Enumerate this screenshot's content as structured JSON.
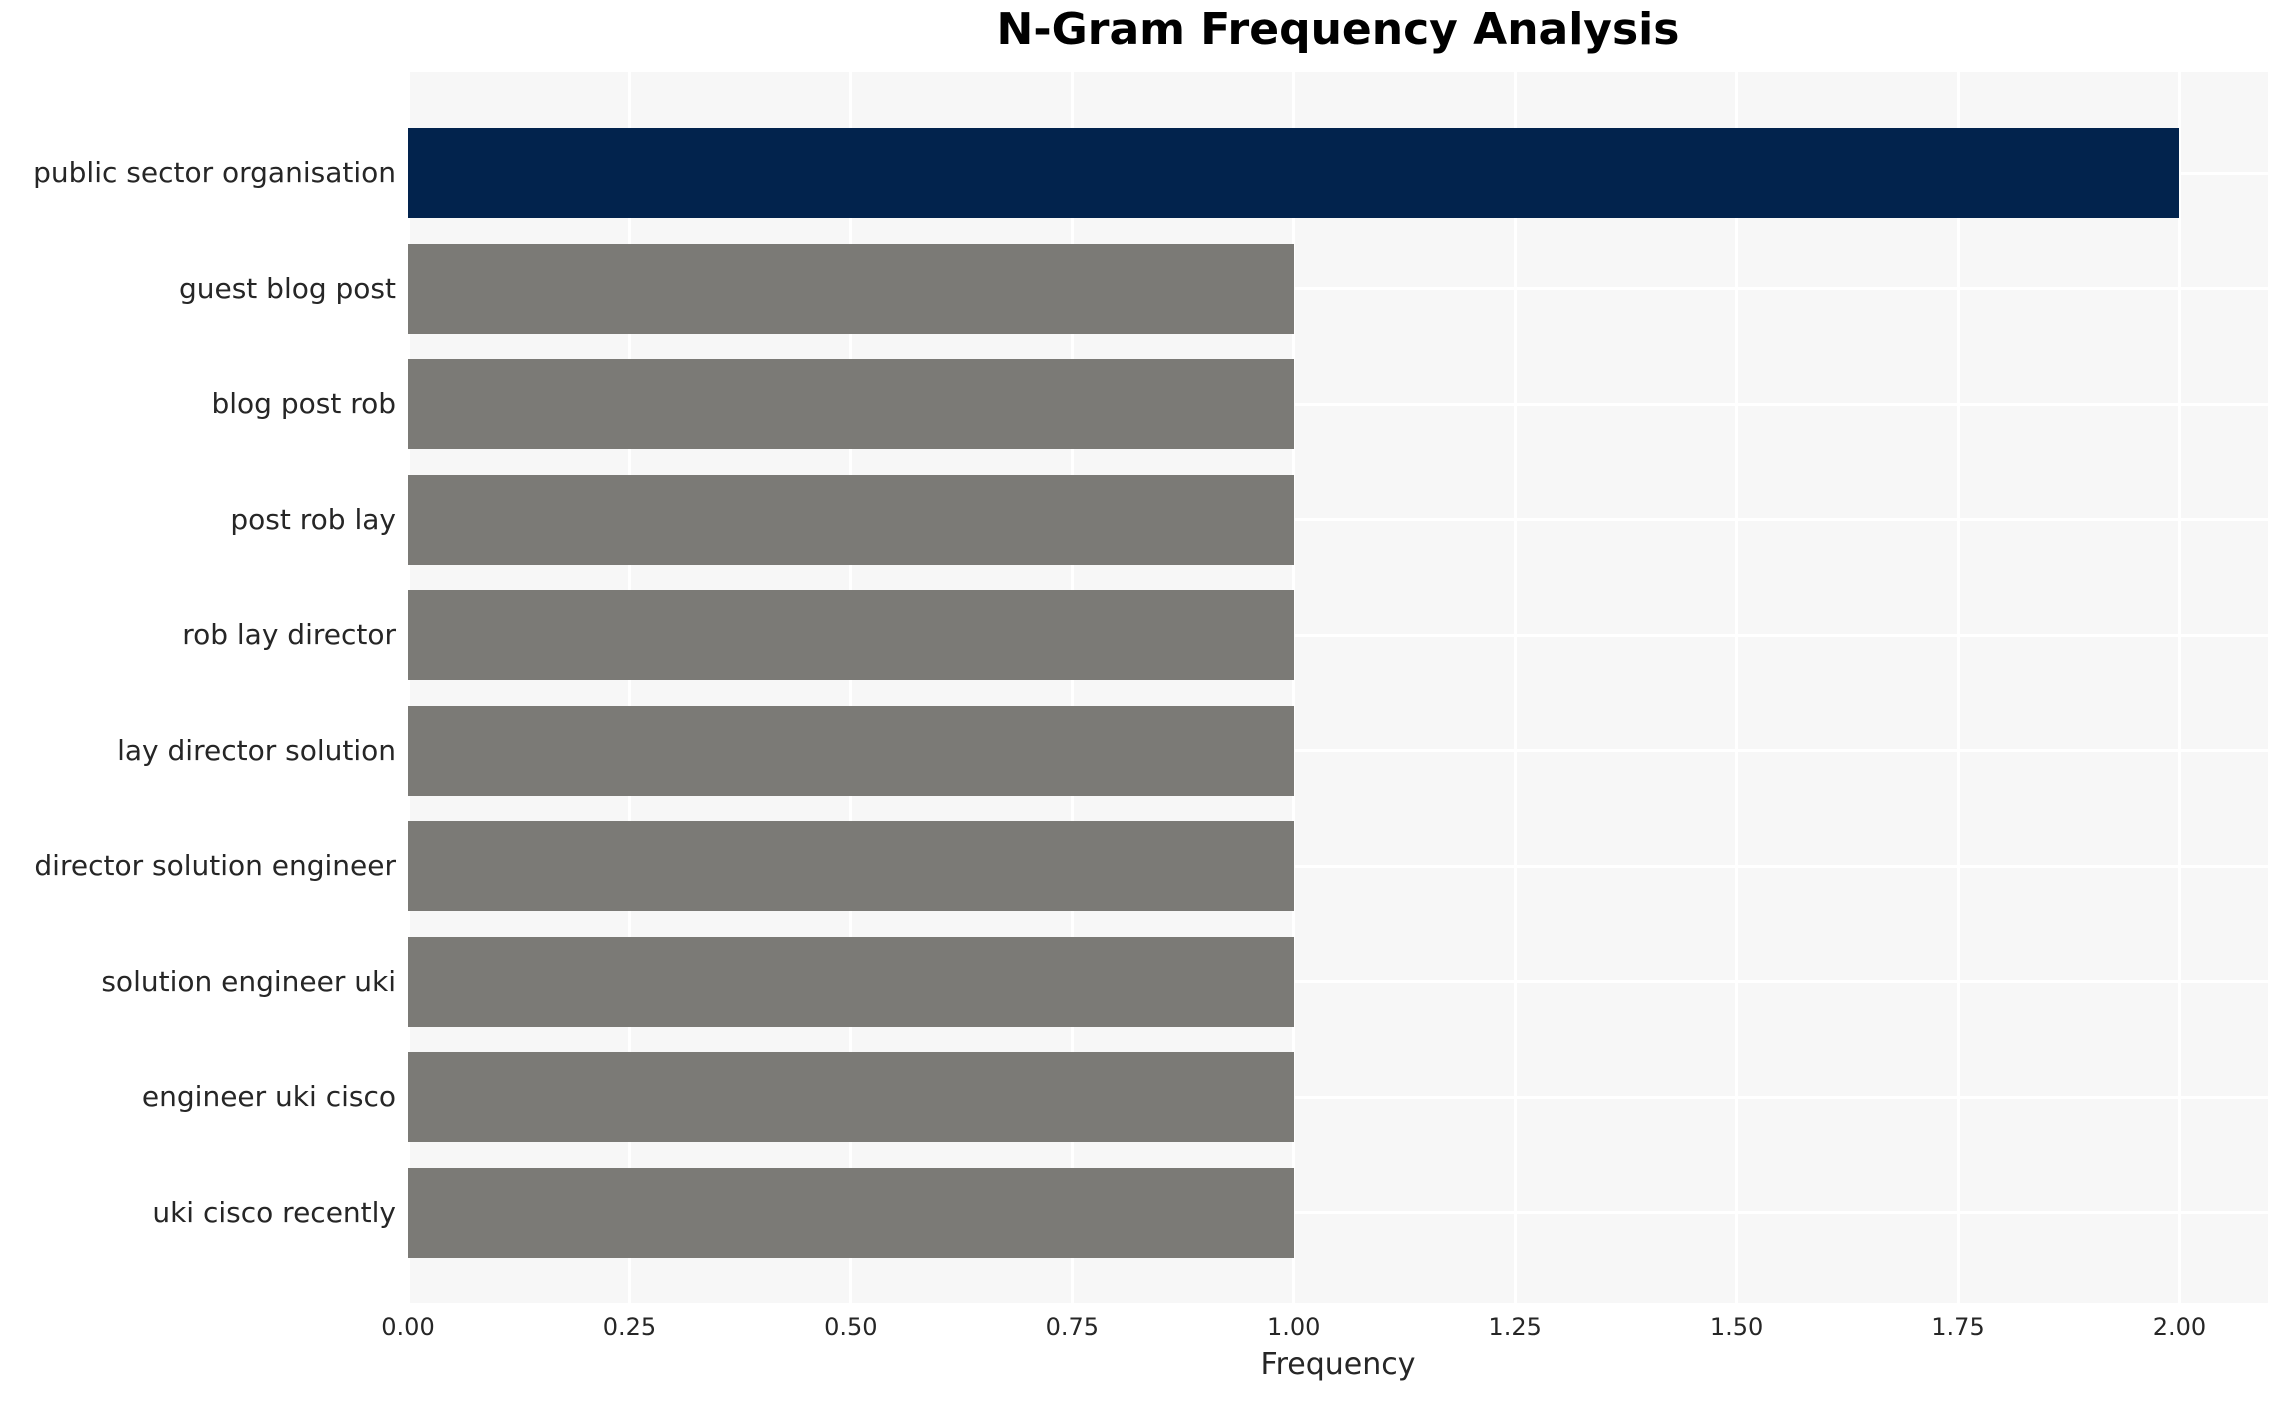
{
  "chart_data": {
    "type": "bar",
    "orientation": "horizontal",
    "title": "N-Gram Frequency Analysis",
    "xlabel": "Frequency",
    "ylabel": "",
    "categories": [
      "public sector organisation",
      "guest blog post",
      "blog post rob",
      "post rob lay",
      "rob lay director",
      "lay director solution",
      "director solution engineer",
      "solution engineer uki",
      "engineer uki cisco",
      "uki cisco recently"
    ],
    "values": [
      2,
      1,
      1,
      1,
      1,
      1,
      1,
      1,
      1,
      1
    ],
    "bar_colors": [
      "#02234d",
      "#7b7a76",
      "#7b7a76",
      "#7b7a76",
      "#7b7a76",
      "#7b7a76",
      "#7b7a76",
      "#7b7a76",
      "#7b7a76",
      "#7b7a76"
    ],
    "xticks": [
      {
        "value": 0.0,
        "label": "0.00"
      },
      {
        "value": 0.25,
        "label": "0.25"
      },
      {
        "value": 0.5,
        "label": "0.50"
      },
      {
        "value": 0.75,
        "label": "0.75"
      },
      {
        "value": 1.0,
        "label": "1.00"
      },
      {
        "value": 1.25,
        "label": "1.25"
      },
      {
        "value": 1.5,
        "label": "1.50"
      },
      {
        "value": 1.75,
        "label": "1.75"
      },
      {
        "value": 2.0,
        "label": "2.00"
      }
    ],
    "xlim": [
      0,
      2.1
    ],
    "grid": true,
    "legend_position": "none",
    "colors": {
      "highlight_bar": "#02234d",
      "default_bar": "#7b7a76",
      "plot_background": "#f7f7f7",
      "figure_background": "#ffffff",
      "gridline": "#ffffff",
      "tick_text": "#262626",
      "title_text": "#000000"
    }
  }
}
